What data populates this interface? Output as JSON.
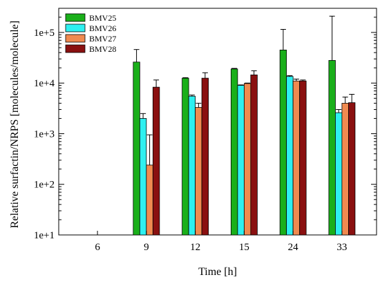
{
  "chart_data": {
    "type": "bar",
    "xlabel": "Time [h]",
    "ylabel": "Relative surfactin/NRPS [molecules/molecule]",
    "yscale": "log",
    "ylim": [
      10,
      300000
    ],
    "yticks": [
      10,
      100,
      1000,
      10000,
      100000
    ],
    "ytick_labels": [
      "1e+1",
      "1e+2",
      "1e+3",
      "1e+4",
      "1e+5"
    ],
    "categories": [
      "6",
      "9",
      "12",
      "15",
      "24",
      "33"
    ],
    "legend_position": "top-left",
    "grid": false,
    "series": [
      {
        "name": "BMV25",
        "color": "#1aaf1a",
        "values": [
          null,
          26000,
          12500,
          19000,
          45000,
          28000
        ],
        "err_upper": [
          null,
          46000,
          12800,
          19500,
          115000,
          210000
        ]
      },
      {
        "name": "BMV26",
        "color": "#2ef0f0",
        "values": [
          null,
          2000,
          5500,
          9000,
          13500,
          2600
        ],
        "err_upper": [
          null,
          2500,
          5800,
          9200,
          14000,
          3000
        ]
      },
      {
        "name": "BMV27",
        "color": "#f08a50",
        "values": [
          null,
          240,
          3300,
          9800,
          11000,
          4000
        ],
        "err_upper": [
          null,
          950,
          4000,
          10000,
          12000,
          5300
        ]
      },
      {
        "name": "BMV28",
        "color": "#8a1010",
        "values": [
          null,
          8300,
          12500,
          14500,
          11000,
          4100
        ],
        "err_upper": [
          null,
          11500,
          16000,
          17500,
          11500,
          6000
        ]
      }
    ]
  }
}
